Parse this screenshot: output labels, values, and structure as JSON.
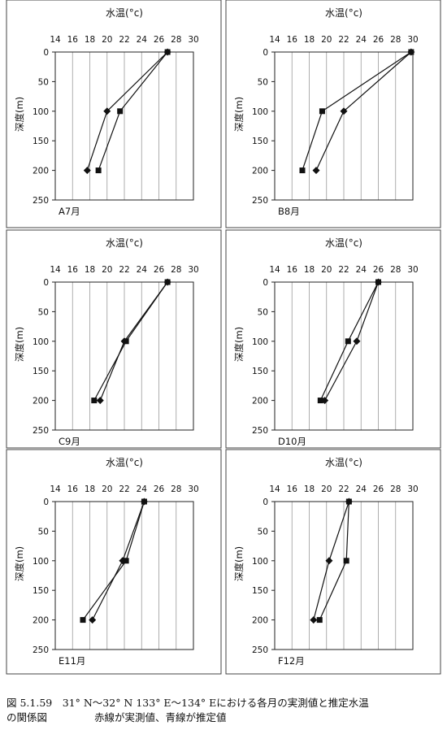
{
  "caption": {
    "line1": "図 5.1.59　31° N～32° N 133° E～134° Eにおける各月の実測値と推定水温",
    "line2a": "の関係図",
    "line2b": "赤線が実測値、青線が推定値"
  },
  "chart_data": [
    {
      "type": "line",
      "title": "水温(°c)",
      "ylabel": "深度(m)",
      "month_label": "A7月",
      "xlim": [
        14,
        30
      ],
      "ylim": [
        0,
        250
      ],
      "x_ticks": [
        "14",
        "16",
        "18",
        "20",
        "22",
        "24",
        "26",
        "28",
        "30"
      ],
      "y_ticks": [
        "0",
        "50",
        "100",
        "150",
        "200",
        "250"
      ],
      "grid": "vertical",
      "series": [
        {
          "marker": "square",
          "points": [
            [
              27,
              0
            ],
            [
              21.5,
              100
            ],
            [
              19,
              200
            ]
          ]
        },
        {
          "marker": "diamond",
          "points": [
            [
              27,
              0
            ],
            [
              20,
              100
            ],
            [
              17.7,
              200
            ]
          ]
        }
      ]
    },
    {
      "type": "line",
      "title": "水温(°c)",
      "ylabel": "深度(m)",
      "month_label": "B8月",
      "xlim": [
        14,
        30
      ],
      "ylim": [
        0,
        250
      ],
      "x_ticks": [
        "14",
        "16",
        "18",
        "20",
        "22",
        "24",
        "26",
        "28",
        "30"
      ],
      "y_ticks": [
        "0",
        "50",
        "100",
        "150",
        "200",
        "250"
      ],
      "grid": "vertical",
      "series": [
        {
          "marker": "square",
          "points": [
            [
              29.8,
              0
            ],
            [
              19.5,
              100
            ],
            [
              17.2,
              200
            ]
          ]
        },
        {
          "marker": "diamond",
          "points": [
            [
              29.8,
              0
            ],
            [
              22,
              100
            ],
            [
              18.8,
              200
            ]
          ]
        }
      ]
    },
    {
      "type": "line",
      "title": "水温(°c)",
      "ylabel": "深度(m)",
      "month_label": "C9月",
      "xlim": [
        14,
        30
      ],
      "ylim": [
        0,
        250
      ],
      "x_ticks": [
        "14",
        "16",
        "18",
        "20",
        "22",
        "24",
        "26",
        "28",
        "30"
      ],
      "y_ticks": [
        "0",
        "50",
        "100",
        "150",
        "200",
        "250"
      ],
      "grid": "vertical",
      "series": [
        {
          "marker": "square",
          "points": [
            [
              27,
              0
            ],
            [
              22.2,
              100
            ],
            [
              18.5,
              200
            ]
          ]
        },
        {
          "marker": "diamond",
          "points": [
            [
              27,
              0
            ],
            [
              22,
              100
            ],
            [
              19.2,
              200
            ]
          ]
        }
      ]
    },
    {
      "type": "line",
      "title": "水温(°c)",
      "ylabel": "深度(m)",
      "month_label": "D10月",
      "xlim": [
        14,
        30
      ],
      "ylim": [
        0,
        250
      ],
      "x_ticks": [
        "14",
        "16",
        "18",
        "20",
        "22",
        "24",
        "26",
        "28",
        "30"
      ],
      "y_ticks": [
        "0",
        "50",
        "100",
        "150",
        "200",
        "250"
      ],
      "grid": "vertical",
      "series": [
        {
          "marker": "square",
          "points": [
            [
              26,
              0
            ],
            [
              22.5,
              100
            ],
            [
              19.3,
              200
            ]
          ]
        },
        {
          "marker": "diamond",
          "points": [
            [
              26,
              0
            ],
            [
              23.5,
              100
            ],
            [
              19.8,
              200
            ]
          ]
        }
      ]
    },
    {
      "type": "line",
      "title": "水温(°c)",
      "ylabel": "深度(m)",
      "month_label": "E11月",
      "xlim": [
        14,
        30
      ],
      "ylim": [
        0,
        250
      ],
      "x_ticks": [
        "14",
        "16",
        "18",
        "20",
        "22",
        "24",
        "26",
        "28",
        "30"
      ],
      "y_ticks": [
        "0",
        "50",
        "100",
        "150",
        "200",
        "250"
      ],
      "grid": "vertical",
      "series": [
        {
          "marker": "square",
          "points": [
            [
              24.3,
              0
            ],
            [
              22.2,
              100
            ],
            [
              17.2,
              200
            ]
          ]
        },
        {
          "marker": "diamond",
          "points": [
            [
              24.3,
              0
            ],
            [
              21.8,
              100
            ],
            [
              18.3,
              200
            ]
          ]
        }
      ]
    },
    {
      "type": "line",
      "title": "水温(°c)",
      "ylabel": "深度(m)",
      "month_label": "F12月",
      "xlim": [
        14,
        30
      ],
      "ylim": [
        0,
        250
      ],
      "x_ticks": [
        "14",
        "16",
        "18",
        "20",
        "22",
        "24",
        "26",
        "28",
        "30"
      ],
      "y_ticks": [
        "0",
        "50",
        "100",
        "150",
        "200",
        "250"
      ],
      "grid": "vertical",
      "series": [
        {
          "marker": "square",
          "points": [
            [
              22.6,
              0
            ],
            [
              22.3,
              100
            ],
            [
              19.2,
              200
            ]
          ]
        },
        {
          "marker": "diamond",
          "points": [
            [
              22.6,
              0
            ],
            [
              20.3,
              100
            ],
            [
              18.5,
              200
            ]
          ]
        }
      ]
    }
  ]
}
